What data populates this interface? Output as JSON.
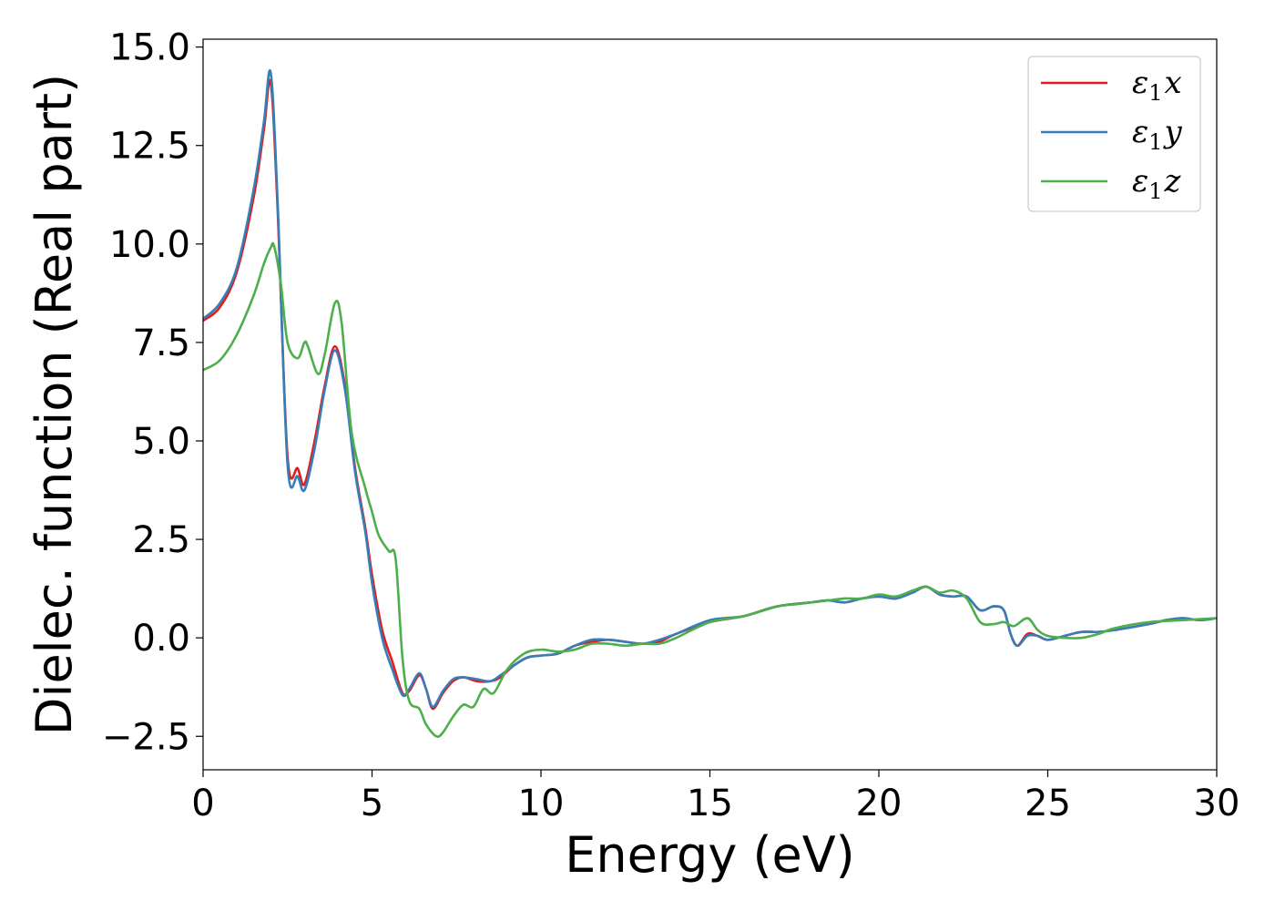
{
  "chart_data": {
    "type": "line",
    "title": "",
    "xlabel": "Energy (eV)",
    "ylabel": "Dielec. function (Real part)",
    "xlim": [
      0,
      30
    ],
    "ylim": [
      -3.35,
      15.2
    ],
    "xticks": [
      0,
      5,
      10,
      15,
      20,
      25,
      30
    ],
    "xtick_labels": [
      "0",
      "5",
      "10",
      "15",
      "20",
      "25",
      "30"
    ],
    "yticks": [
      -2.5,
      0,
      2.5,
      5,
      7.5,
      10,
      12.5,
      15
    ],
    "ytick_labels": [
      "−2.5",
      "0.0",
      "2.5",
      "5.0",
      "7.5",
      "10.0",
      "12.5",
      "15.0"
    ],
    "grid": false,
    "legend_position": "top-right",
    "series": [
      {
        "name": "ε1x",
        "legend_base": "ε",
        "legend_sub": "1",
        "legend_var": "x",
        "color": "#e41a1c",
        "x": [
          0,
          0.5,
          1.0,
          1.5,
          1.8,
          2.0,
          2.2,
          2.5,
          2.8,
          3.0,
          3.3,
          3.6,
          3.9,
          4.2,
          4.5,
          4.8,
          5.0,
          5.3,
          5.6,
          5.9,
          6.1,
          6.4,
          6.6,
          6.8,
          7.1,
          7.4,
          7.7,
          8.1,
          8.5,
          8.8,
          9.2,
          9.6,
          10.0,
          10.5,
          11.0,
          11.5,
          12.0,
          12.5,
          13.0,
          13.5,
          14.0,
          15.0,
          16.0,
          17.0,
          18.0,
          18.5,
          19.0,
          19.5,
          20.0,
          20.5,
          21.0,
          21.4,
          21.8,
          22.2,
          22.6,
          23.0,
          23.4,
          23.7,
          23.9,
          24.1,
          24.4,
          24.7,
          25.0,
          25.5,
          26.0,
          26.5,
          27.0,
          28.0,
          28.5,
          29.0,
          29.5,
          30.0
        ],
        "values": [
          8.05,
          8.4,
          9.3,
          11.2,
          12.9,
          14.1,
          11.0,
          4.6,
          4.3,
          3.9,
          5.0,
          6.4,
          7.4,
          6.4,
          4.3,
          2.8,
          1.6,
          0.2,
          -0.6,
          -1.4,
          -1.35,
          -0.95,
          -1.3,
          -1.8,
          -1.4,
          -1.1,
          -1.0,
          -1.1,
          -1.1,
          -1.0,
          -0.7,
          -0.5,
          -0.45,
          -0.4,
          -0.2,
          -0.1,
          -0.05,
          -0.1,
          -0.15,
          -0.1,
          0.1,
          0.4,
          0.55,
          0.8,
          0.9,
          0.95,
          0.9,
          1.0,
          1.05,
          1.0,
          1.15,
          1.3,
          1.1,
          1.05,
          1.05,
          0.7,
          0.8,
          0.7,
          0.1,
          -0.2,
          0.1,
          0.05,
          -0.05,
          0.05,
          0.15,
          0.15,
          0.2,
          0.35,
          0.45,
          0.5,
          0.45,
          0.5
        ]
      },
      {
        "name": "ε1y",
        "legend_base": "ε",
        "legend_sub": "1",
        "legend_var": "y",
        "color": "#377eb8",
        "x": [
          0,
          0.5,
          1.0,
          1.5,
          1.8,
          2.0,
          2.2,
          2.5,
          2.8,
          3.0,
          3.3,
          3.6,
          3.9,
          4.2,
          4.5,
          4.8,
          5.0,
          5.3,
          5.6,
          5.9,
          6.1,
          6.4,
          6.6,
          6.8,
          7.1,
          7.4,
          7.7,
          8.1,
          8.5,
          8.8,
          9.2,
          9.6,
          10.0,
          10.5,
          11.0,
          11.5,
          12.0,
          12.5,
          13.0,
          13.5,
          14.0,
          15.0,
          16.0,
          17.0,
          18.0,
          18.5,
          19.0,
          19.5,
          20.0,
          20.5,
          21.0,
          21.4,
          21.8,
          22.2,
          22.6,
          23.0,
          23.4,
          23.7,
          23.9,
          24.1,
          24.4,
          24.7,
          25.0,
          25.5,
          26.0,
          26.5,
          27.0,
          28.0,
          28.5,
          29.0,
          29.5,
          30.0
        ],
        "values": [
          8.1,
          8.5,
          9.4,
          11.4,
          13.1,
          14.35,
          11.2,
          4.4,
          4.1,
          3.75,
          4.8,
          6.3,
          7.3,
          6.3,
          4.2,
          2.7,
          1.4,
          0.0,
          -0.8,
          -1.45,
          -1.3,
          -0.9,
          -1.3,
          -1.75,
          -1.35,
          -1.05,
          -1.0,
          -1.05,
          -1.1,
          -0.95,
          -0.7,
          -0.5,
          -0.45,
          -0.4,
          -0.2,
          -0.05,
          -0.05,
          -0.1,
          -0.15,
          -0.05,
          0.1,
          0.45,
          0.55,
          0.8,
          0.9,
          0.95,
          0.9,
          1.0,
          1.05,
          1.0,
          1.15,
          1.3,
          1.1,
          1.05,
          1.05,
          0.7,
          0.8,
          0.7,
          0.1,
          -0.2,
          0.05,
          0.05,
          -0.05,
          0.05,
          0.15,
          0.15,
          0.2,
          0.35,
          0.45,
          0.5,
          0.45,
          0.5
        ]
      },
      {
        "name": "ε1z",
        "legend_base": "ε",
        "legend_sub": "1",
        "legend_var": "z",
        "color": "#4daf4a",
        "x": [
          0,
          0.5,
          1.0,
          1.5,
          1.8,
          2.0,
          2.1,
          2.3,
          2.5,
          2.8,
          3.0,
          3.1,
          3.4,
          3.6,
          3.9,
          4.1,
          4.4,
          4.8,
          5.0,
          5.2,
          5.5,
          5.7,
          5.9,
          6.1,
          6.4,
          6.6,
          6.9,
          7.1,
          7.4,
          7.7,
          8.0,
          8.3,
          8.6,
          9.0,
          9.5,
          10.0,
          10.5,
          11.0,
          11.5,
          12.0,
          12.5,
          13.0,
          13.5,
          14.0,
          15.0,
          16.0,
          17.0,
          17.5,
          18.0,
          18.5,
          19.0,
          19.5,
          20.0,
          20.5,
          21.0,
          21.4,
          21.8,
          22.2,
          22.6,
          23.0,
          23.4,
          23.7,
          24.0,
          24.4,
          24.7,
          25.0,
          25.5,
          26.0,
          26.5,
          27.0,
          28.0,
          29.0,
          30.0
        ],
        "values": [
          6.8,
          7.05,
          7.7,
          8.7,
          9.5,
          9.9,
          9.95,
          9.0,
          7.5,
          7.1,
          7.5,
          7.4,
          6.7,
          7.2,
          8.5,
          8.0,
          5.2,
          3.8,
          3.2,
          2.6,
          2.2,
          2.0,
          -0.5,
          -1.6,
          -1.8,
          -2.2,
          -2.5,
          -2.4,
          -2.0,
          -1.7,
          -1.75,
          -1.3,
          -1.4,
          -0.8,
          -0.4,
          -0.3,
          -0.35,
          -0.3,
          -0.15,
          -0.15,
          -0.2,
          -0.15,
          -0.15,
          0.0,
          0.4,
          0.55,
          0.8,
          0.85,
          0.9,
          0.95,
          1.0,
          1.0,
          1.1,
          1.05,
          1.2,
          1.3,
          1.15,
          1.2,
          1.0,
          0.4,
          0.35,
          0.4,
          0.3,
          0.5,
          0.2,
          0.05,
          0.0,
          0.0,
          0.1,
          0.25,
          0.4,
          0.45,
          0.5
        ]
      }
    ]
  }
}
